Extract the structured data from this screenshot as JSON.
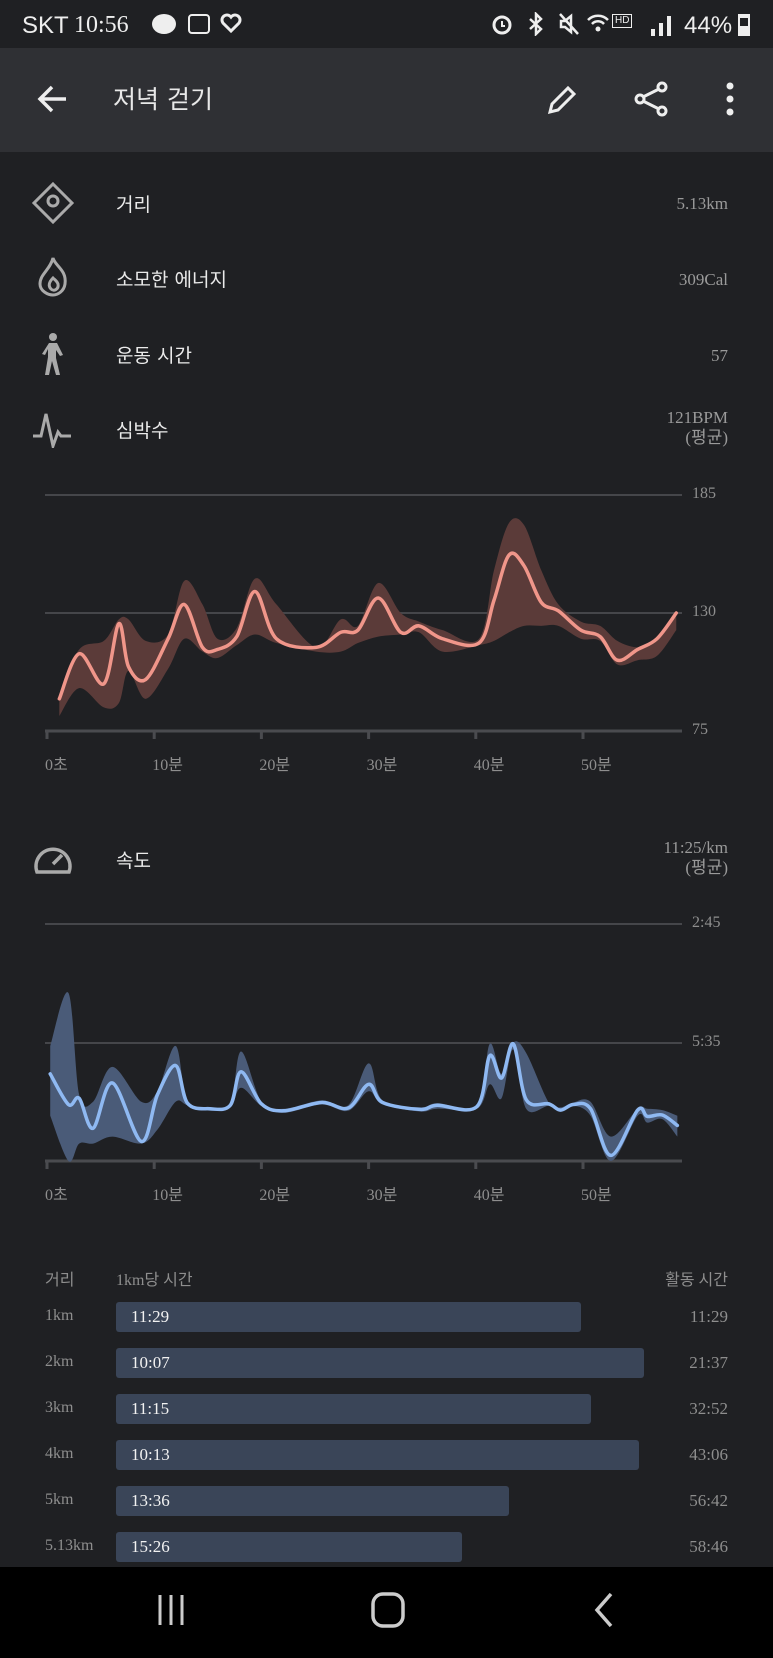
{
  "status_bar": {
    "carrier": "SKT",
    "time": "10:56",
    "battery": "44%",
    "icons": [
      "talk-icon",
      "app-icon",
      "heart-icon",
      "alarm-icon",
      "bluetooth-icon",
      "mute-icon",
      "wifi-icon",
      "hd-voice-icon",
      "signal-icon",
      "battery-icon"
    ]
  },
  "app_bar": {
    "title": "저녁 걷기",
    "back_icon": "arrow-left-icon",
    "edit_icon": "pencil-icon",
    "share_icon": "share-icon",
    "more_icon": "more-vertical-icon"
  },
  "summary": [
    {
      "icon": "location-diamond-icon",
      "label": "거리",
      "value": "5.13km"
    },
    {
      "icon": "flame-icon",
      "label": "소모한 에너지",
      "value": "309Cal"
    },
    {
      "icon": "walking-icon",
      "label": "운동 시간",
      "value": "57"
    },
    {
      "icon": "heartbeat-icon",
      "label": "심박수",
      "value": "121BPM",
      "sub": "(평균)"
    }
  ],
  "speed_header": {
    "icon": "speedometer-icon",
    "label": "속도",
    "value": "11:25/km",
    "sub": "(평균)"
  },
  "colors": {
    "heart_line": "#f0968a",
    "heart_band": "#5b3b39",
    "speed_line": "#8fb9f2",
    "speed_band": "#4a5b78",
    "split_bar": "#3a4558"
  },
  "chart_data": [
    {
      "type": "area",
      "ylim": [
        75,
        185
      ],
      "yticks": [
        "185",
        "130",
        "75"
      ],
      "xticks": [
        "0초",
        "10분",
        "20분",
        "30분",
        "40분",
        "50분"
      ],
      "grid": true,
      "x_min": [
        1.15,
        3,
        5.3,
        6.7,
        7.6,
        9.2,
        11.3,
        12.8,
        14.5,
        15.9,
        17.7,
        19.4,
        21.4,
        25.1,
        27.4,
        29,
        30.9,
        33,
        34.7,
        36.9,
        40.3,
        41.7,
        43.1,
        44.5,
        46.1,
        47.7,
        49.8,
        51.6,
        53.2,
        55.1,
        56.9,
        58.7
      ],
      "avg": [
        90,
        111,
        97,
        125,
        105,
        99,
        118,
        134,
        114,
        113,
        119,
        140,
        118,
        114,
        121,
        122,
        137,
        121,
        124,
        118,
        116,
        136,
        157,
        152,
        135,
        131,
        122,
        119,
        108,
        113,
        118,
        130
      ],
      "max": [
        92,
        113,
        117,
        127,
        127,
        117,
        120,
        145,
        134,
        118,
        123,
        146,
        134,
        114,
        127,
        124,
        144,
        130,
        126,
        122,
        118,
        150,
        172,
        171,
        150,
        134,
        126,
        124,
        117,
        114,
        117,
        130
      ],
      "min": [
        82,
        95,
        86,
        88,
        103,
        90,
        104,
        118,
        112,
        109,
        115,
        120,
        116,
        112,
        112,
        116,
        119,
        120,
        121,
        112,
        115,
        117,
        121,
        124,
        124,
        124,
        118,
        117,
        106,
        108,
        110,
        122
      ]
    },
    {
      "type": "area",
      "y_inverted": true,
      "yticks": [
        "2:45",
        "5:35"
      ],
      "xticks": [
        "0초",
        "10분",
        "20분",
        "30분",
        "40분",
        "50분"
      ],
      "grid": true,
      "x_min": [
        0.3,
        2,
        3,
        4.3,
        6.1,
        8.8,
        10.3,
        12,
        13.1,
        15.2,
        17.1,
        18.1,
        20,
        22.1,
        25.6,
        28.1,
        30,
        31.3,
        34.8,
        36.4,
        40.1,
        41.3,
        42.4,
        43.5,
        44.7,
        46.8,
        47.9,
        49.1,
        50.7,
        52.6,
        55.1,
        56,
        57.4,
        58.8
      ],
      "avg": [
        "6:20",
        "7:04",
        "6:55",
        "7:38",
        "6:33",
        "7:57",
        "6:50",
        "6:08",
        "7:02",
        "7:10",
        "7:05",
        "6:17",
        "7:03",
        "7:13",
        "7:01",
        "7:09",
        "6:35",
        "7:01",
        "7:11",
        "7:05",
        "7:07",
        "5:54",
        "6:26",
        "5:37",
        "6:57",
        "7:03",
        "7:12",
        "7:04",
        "7:10",
        "8:17",
        "7:12",
        "7:21",
        "7:19",
        "7:34"
      ],
      "fast": [
        "5:40",
        "4:24",
        "6:50",
        "7:00",
        "6:10",
        "7:00",
        "6:45",
        "5:40",
        "7:00",
        "7:08",
        "7:03",
        "5:48",
        "7:00",
        "7:10",
        "6:58",
        "7:05",
        "6:05",
        "6:58",
        "7:08",
        "7:02",
        "7:04",
        "5:37",
        "6:20",
        "5:35",
        "5:50",
        "7:01",
        "7:08",
        "7:01",
        "7:00",
        "7:50",
        "7:10",
        "7:10",
        "7:12",
        "7:20"
      ],
      "slow": [
        "7:20",
        "8:25",
        "8:00",
        "8:00",
        "7:50",
        "8:00",
        "7:40",
        "7:00",
        "7:05",
        "7:13",
        "7:08",
        "6:40",
        "7:06",
        "7:16",
        "7:04",
        "7:13",
        "6:45",
        "7:04",
        "7:14",
        "7:10",
        "7:10",
        "6:35",
        "6:55",
        "5:45",
        "7:10",
        "7:06",
        "7:14",
        "7:06",
        "7:20",
        "8:25",
        "7:20",
        "7:30",
        "7:25",
        "7:50"
      ]
    }
  ],
  "splits": {
    "headers": [
      "거리",
      "1km당 시간",
      "활동 시간"
    ],
    "rows": [
      {
        "distance": "1km",
        "pace": "11:29",
        "total": "11:29"
      },
      {
        "distance": "2km",
        "pace": "10:07",
        "total": "21:37"
      },
      {
        "distance": "3km",
        "pace": "11:15",
        "total": "32:52"
      },
      {
        "distance": "4km",
        "pace": "10:13",
        "total": "43:06"
      },
      {
        "distance": "5km",
        "pace": "13:36",
        "total": "56:42"
      },
      {
        "distance": "5.13km",
        "pace": "15:26",
        "total": "58:46"
      }
    ]
  },
  "nav": {
    "recent_icon": "recent-apps-icon",
    "home_icon": "home-icon",
    "back_icon": "back-chevron-icon"
  }
}
